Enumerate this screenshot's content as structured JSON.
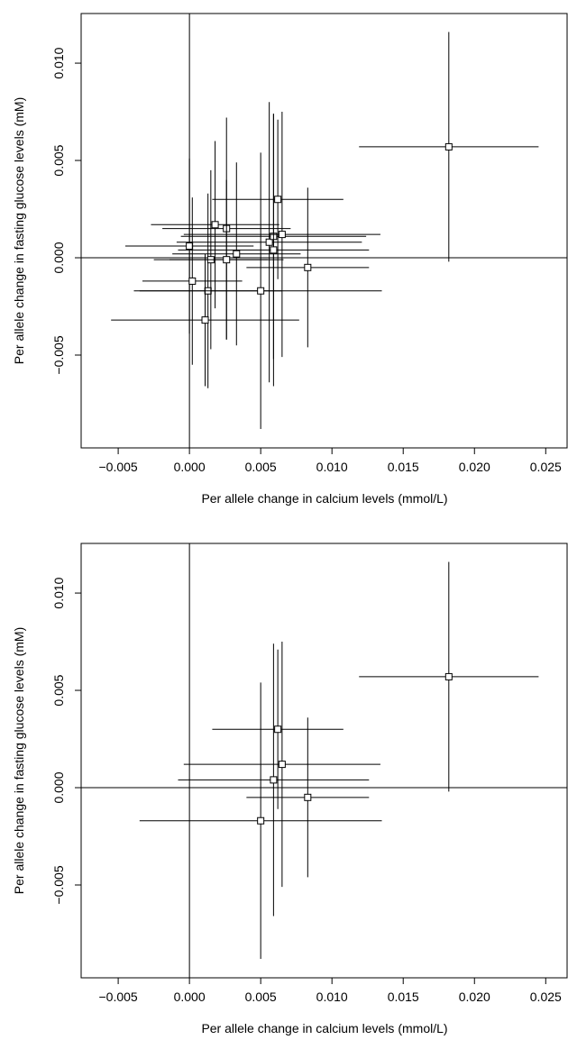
{
  "chart_data": [
    {
      "type": "scatter",
      "xlabel": "Per allele change in calcium levels (mmol/L)",
      "ylabel": "Per allele change in fasting glucose levels (mM)",
      "x": [
        0.0,
        0.0002,
        0.0013,
        0.0011,
        0.0015,
        0.0018,
        0.0026,
        0.0026,
        0.0033,
        0.005,
        0.0056,
        0.0059,
        0.0059,
        0.0062,
        0.0065,
        0.0083,
        0.0182
      ],
      "values": [
        0.0006,
        -0.0012,
        -0.0017,
        -0.0032,
        -0.0001,
        0.0017,
        0.0015,
        -0.0001,
        0.0002,
        -0.0017,
        0.0008,
        0.0011,
        0.0004,
        0.003,
        0.0012,
        -0.0005,
        0.0057
      ],
      "xerr": [
        0.0045,
        0.0035,
        0.0052,
        0.0066,
        0.004,
        0.0045,
        0.0045,
        0.004,
        0.0045,
        0.0085,
        0.0065,
        0.0065,
        0.0067,
        0.0046,
        0.0069,
        0.0043,
        0.0063
      ],
      "yerr": [
        0.0045,
        0.0043,
        0.005,
        0.0034,
        0.0046,
        0.0043,
        0.0057,
        0.0041,
        0.0047,
        0.0071,
        0.0072,
        0.0063,
        0.007,
        0.0041,
        0.0063,
        0.0041,
        0.0059
      ],
      "ref_lines": {
        "x": 0,
        "y": 0
      },
      "xlim": [
        -0.0076,
        0.0265
      ],
      "ylim": [
        -0.00977,
        0.01255
      ],
      "xticks": [
        {
          "value": -0.005,
          "label": "−0.005"
        },
        {
          "value": 0,
          "label": "0.000"
        },
        {
          "value": 0.005,
          "label": "0.005"
        },
        {
          "value": 0.01,
          "label": "0.010"
        },
        {
          "value": 0.015,
          "label": "0.015"
        },
        {
          "value": 0.02,
          "label": "0.020"
        },
        {
          "value": 0.025,
          "label": "0.025"
        }
      ],
      "yticks": [
        {
          "value": -0.005,
          "label": "−0.005"
        },
        {
          "value": 0,
          "label": "0.000"
        },
        {
          "value": 0.005,
          "label": "0.005"
        },
        {
          "value": 0.01,
          "label": "0.010"
        }
      ]
    },
    {
      "type": "scatter",
      "xlabel": "Per allele change in calcium levels (mmol/L)",
      "ylabel": "Per allele change in fasting glucose levels (mM)",
      "x": [
        0.005,
        0.0059,
        0.0062,
        0.0065,
        0.0083,
        0.0182
      ],
      "values": [
        -0.0017,
        0.0004,
        0.003,
        0.0012,
        -0.0005,
        0.0057
      ],
      "xerr": [
        0.0085,
        0.0067,
        0.0046,
        0.0069,
        0.0043,
        0.0063
      ],
      "yerr": [
        0.0071,
        0.007,
        0.0041,
        0.0063,
        0.0041,
        0.0059
      ],
      "ref_lines": {
        "x": 0,
        "y": 0
      },
      "xlim": [
        -0.0076,
        0.0265
      ],
      "ylim": [
        -0.00977,
        0.01255
      ],
      "xticks": [
        {
          "value": -0.005,
          "label": "−0.005"
        },
        {
          "value": 0,
          "label": "0.000"
        },
        {
          "value": 0.005,
          "label": "0.005"
        },
        {
          "value": 0.01,
          "label": "0.010"
        },
        {
          "value": 0.015,
          "label": "0.015"
        },
        {
          "value": 0.02,
          "label": "0.020"
        },
        {
          "value": 0.025,
          "label": "0.025"
        }
      ],
      "yticks": [
        {
          "value": -0.005,
          "label": "−0.005"
        },
        {
          "value": 0,
          "label": "0.000"
        },
        {
          "value": 0.005,
          "label": "0.005"
        },
        {
          "value": 0.01,
          "label": "0.010"
        }
      ]
    }
  ]
}
